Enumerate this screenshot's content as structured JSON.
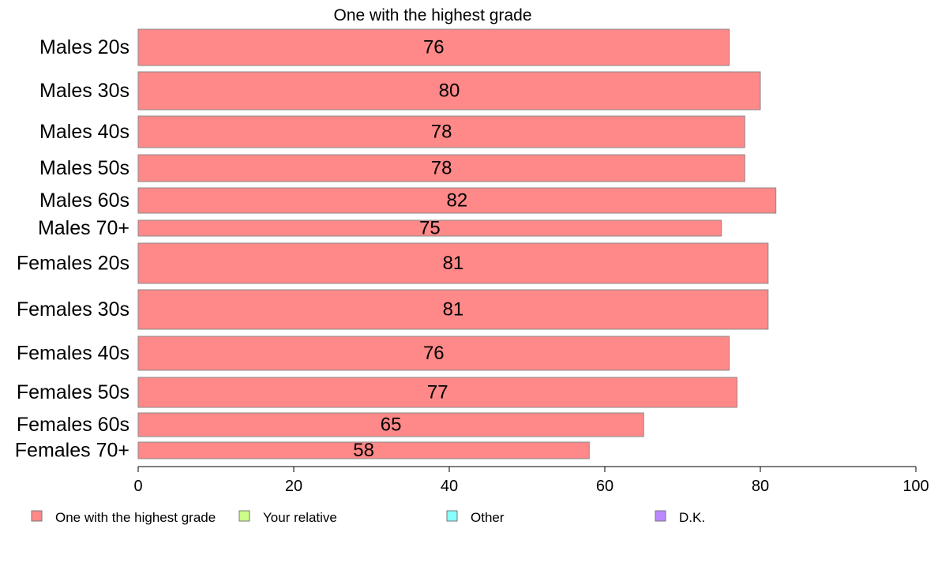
{
  "chart_data": {
    "type": "bar",
    "orientation": "horizontal",
    "title": "One with the highest grade",
    "categories": [
      "Males 20s",
      "Males 30s",
      "Males 40s",
      "Males 50s",
      "Males 60s",
      "Males 70+",
      "Females 20s",
      "Females 30s",
      "Females 40s",
      "Females 50s",
      "Females 60s",
      "Females 70+"
    ],
    "series": [
      {
        "name": "One with the highest grade",
        "color": "#FF8888",
        "values": [
          76,
          80,
          78,
          78,
          82,
          75,
          81,
          81,
          76,
          77,
          65,
          58
        ],
        "data_labels": [
          "76",
          "80",
          "78",
          "78",
          "82",
          "75",
          "81",
          "81",
          "76",
          "77",
          "65",
          "58"
        ]
      }
    ],
    "xlim": [
      0,
      100
    ],
    "x_ticks": [
      "0",
      "20",
      "40",
      "60",
      "80",
      "100"
    ],
    "grid": false,
    "legend_position": "bottom",
    "legend": [
      {
        "label": "One with the highest grade",
        "color": "#FF8888"
      },
      {
        "label": "Your relative",
        "color": "#CCFF88"
      },
      {
        "label": "Other",
        "color": "#88FFFF"
      },
      {
        "label": "D.K.",
        "color": "#BB88FF"
      }
    ]
  }
}
